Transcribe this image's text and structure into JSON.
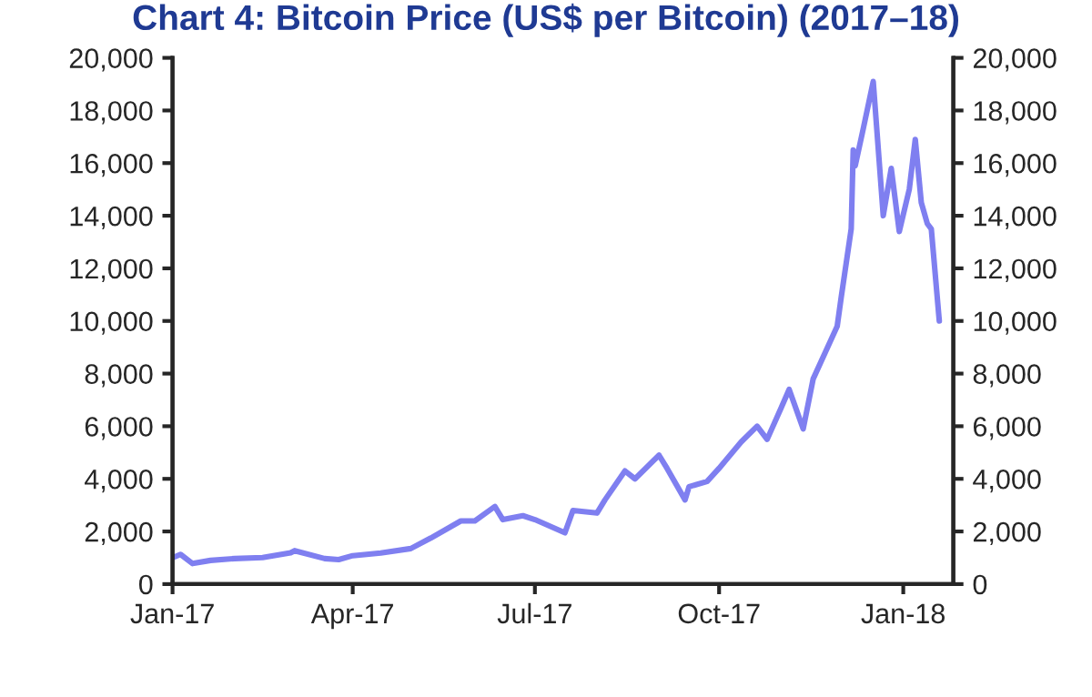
{
  "chart_data": {
    "type": "line",
    "title": "Chart 4: Bitcoin Price (US$ per Bitcoin) (2017–18)",
    "x": [
      "2017-01-01",
      "2017-01-05",
      "2017-01-11",
      "2017-01-20",
      "2017-02-01",
      "2017-02-15",
      "2017-03-01",
      "2017-03-03",
      "2017-03-18",
      "2017-03-25",
      "2017-04-01",
      "2017-04-15",
      "2017-04-30",
      "2017-05-10",
      "2017-05-25",
      "2017-06-01",
      "2017-06-11",
      "2017-06-15",
      "2017-06-25",
      "2017-07-01",
      "2017-07-16",
      "2017-07-20",
      "2017-08-01",
      "2017-08-05",
      "2017-08-15",
      "2017-08-20",
      "2017-09-01",
      "2017-09-05",
      "2017-09-14",
      "2017-09-16",
      "2017-09-25",
      "2017-10-01",
      "2017-10-12",
      "2017-10-20",
      "2017-10-25",
      "2017-11-01",
      "2017-11-05",
      "2017-11-12",
      "2017-11-17",
      "2017-11-26",
      "2017-11-29",
      "2017-12-01",
      "2017-12-06",
      "2017-12-07",
      "2017-12-08",
      "2017-12-12",
      "2017-12-17",
      "2017-12-22",
      "2017-12-26",
      "2017-12-30",
      "2018-01-04",
      "2018-01-07",
      "2018-01-10",
      "2018-01-13",
      "2018-01-15",
      "2018-01-19"
    ],
    "series": [
      {
        "color": "#7f7ff0",
        "values": [
          1000,
          1130,
          780,
          900,
          970,
          1010,
          1190,
          1270,
          970,
          930,
          1080,
          1180,
          1350,
          1750,
          2400,
          2400,
          2950,
          2450,
          2600,
          2450,
          1950,
          2800,
          2700,
          3200,
          4300,
          4000,
          4900,
          4400,
          3200,
          3700,
          3900,
          4400,
          5400,
          6000,
          5500,
          6700,
          7400,
          5900,
          7800,
          9300,
          9800,
          10900,
          13500,
          16500,
          15900,
          17300,
          19100,
          14000,
          15800,
          13400,
          15000,
          16900,
          14500,
          13700,
          13500,
          10000
        ]
      }
    ],
    "xlim": [
      "2017-01-01",
      "2018-01-26"
    ],
    "xticks": [
      {
        "value": "2017-01-01",
        "label": "Jan-17"
      },
      {
        "value": "2017-04-01",
        "label": "Apr-17"
      },
      {
        "value": "2017-07-01",
        "label": "Jul-17"
      },
      {
        "value": "2017-10-01",
        "label": "Oct-17"
      },
      {
        "value": "2018-01-01",
        "label": "Jan-18"
      }
    ],
    "ylim": [
      0,
      20000
    ],
    "yticks": [
      0,
      {
        "value": 2000,
        "label": "2,000"
      },
      {
        "value": 4000,
        "label": "4,000"
      },
      {
        "value": 6000,
        "label": "6,000"
      },
      {
        "value": 8000,
        "label": "8,000"
      },
      {
        "value": 10000,
        "label": "10,000"
      },
      {
        "value": 12000,
        "label": "12,000"
      },
      {
        "value": 14000,
        "label": "14,000"
      },
      {
        "value": 16000,
        "label": "16,000"
      },
      {
        "value": 18000,
        "label": "18,000"
      },
      {
        "value": 20000,
        "label": "20,000"
      }
    ],
    "y2lim": [
      0,
      20000
    ],
    "y2ticks": [
      0,
      {
        "value": 2000,
        "label": "2,000"
      },
      {
        "value": 4000,
        "label": "4,000"
      },
      {
        "value": 6000,
        "label": "6,000"
      },
      {
        "value": 8000,
        "label": "8,000"
      },
      {
        "value": 10000,
        "label": "10,000"
      },
      {
        "value": 12000,
        "label": "12,000"
      },
      {
        "value": 14000,
        "label": "14,000"
      },
      {
        "value": 16000,
        "label": "16,000"
      },
      {
        "value": 18000,
        "label": "18,000"
      },
      {
        "value": 20000,
        "label": "20,000"
      }
    ],
    "grid": false,
    "legend": false,
    "marker": "none",
    "line_style": "solid"
  }
}
